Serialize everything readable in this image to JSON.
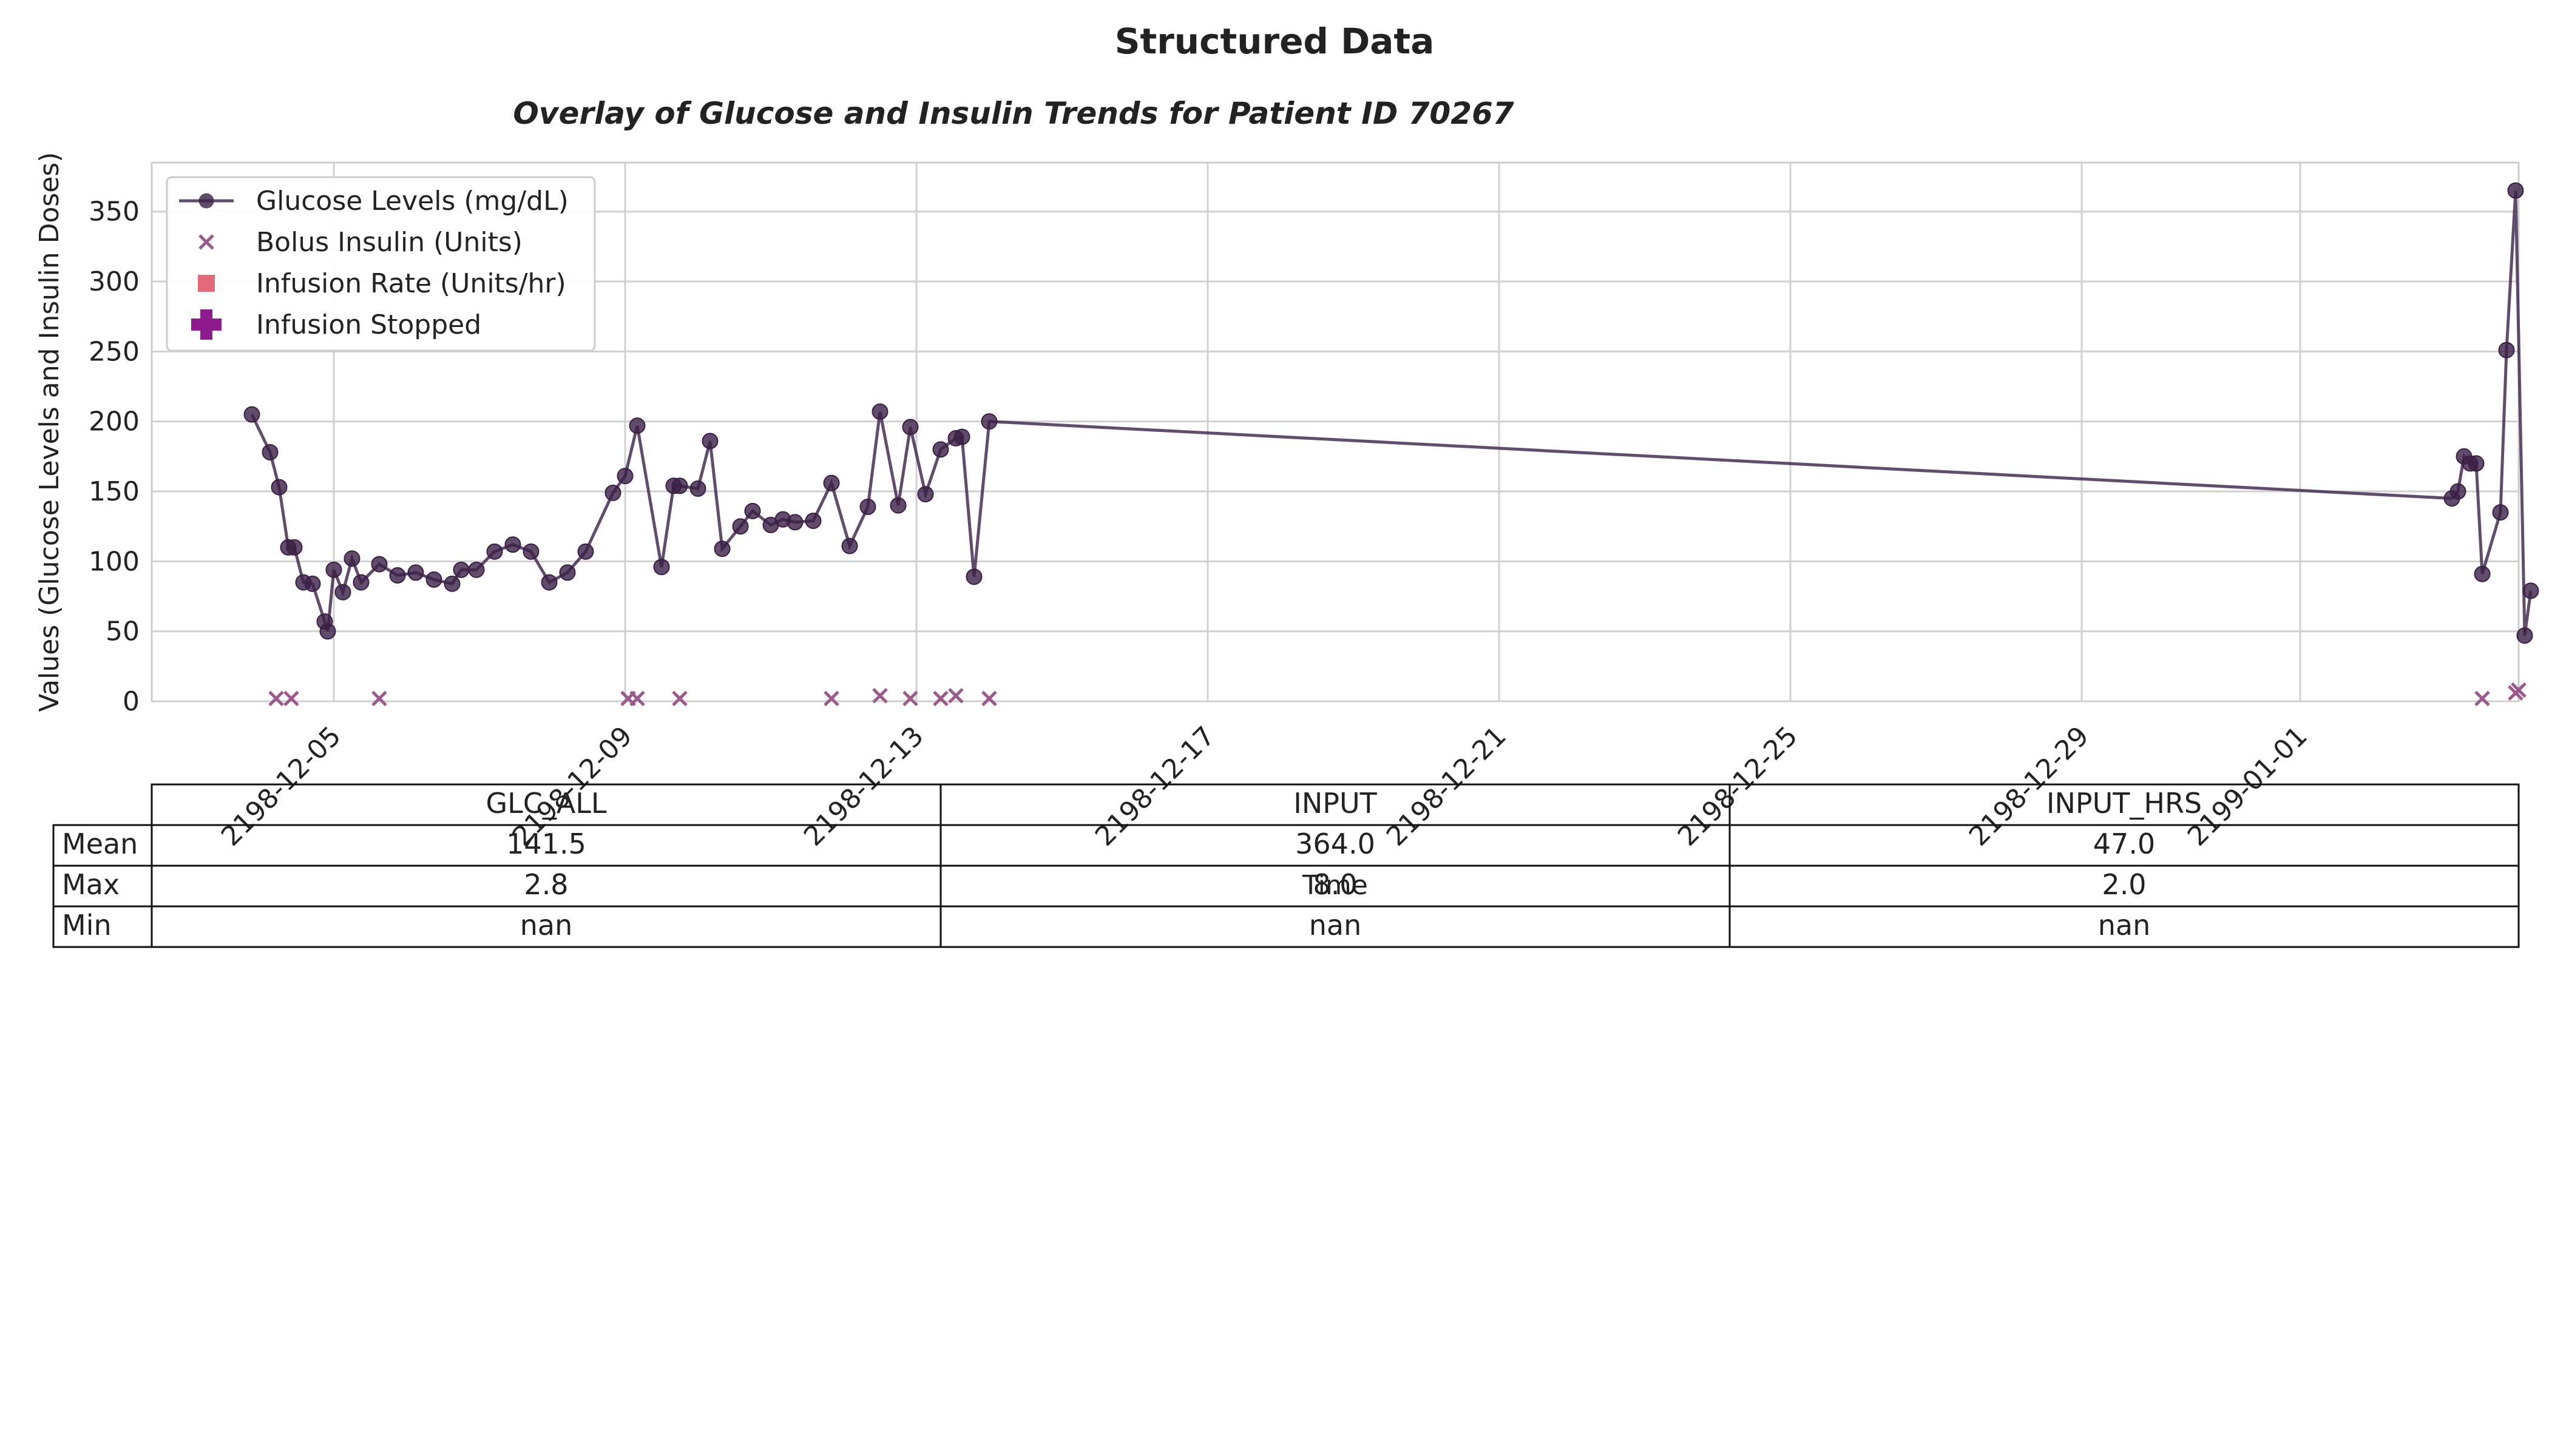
{
  "figure": {
    "suptitle": "Structured Data"
  },
  "chart_data": {
    "type": "line",
    "title": "Overlay of Glucose and Insulin Trends for Patient ID 70267",
    "xlabel": "Time",
    "ylabel": "Values (Glucose Levels and Insulin Doses)",
    "ylim": [
      0,
      385
    ],
    "xlim": [
      "2198-12-02T12:00",
      "2199-01-04T00:00"
    ],
    "grid": true,
    "legend_placement": "top-left",
    "y_ticks": [
      0,
      50,
      100,
      150,
      200,
      250,
      300,
      350
    ],
    "x_ticks": [
      "2198-12-05",
      "2198-12-09",
      "2198-12-13",
      "2198-12-17",
      "2198-12-21",
      "2198-12-25",
      "2198-12-29",
      "2199-01-01"
    ],
    "series": [
      {
        "name": "Glucose Levels (mg/dL)",
        "kind": "line-marker",
        "color": "#3b1f46",
        "points": [
          [
            "2198-12-03T21:00",
            205
          ],
          [
            "2198-12-04T03:00",
            178
          ],
          [
            "2198-12-04T06:00",
            153
          ],
          [
            "2198-12-04T09:00",
            110
          ],
          [
            "2198-12-04T11:00",
            110
          ],
          [
            "2198-12-04T14:00",
            85
          ],
          [
            "2198-12-04T17:00",
            84
          ],
          [
            "2198-12-04T21:00",
            57
          ],
          [
            "2198-12-04T22:00",
            50
          ],
          [
            "2198-12-05T00:00",
            94
          ],
          [
            "2198-12-05T03:00",
            78
          ],
          [
            "2198-12-05T06:00",
            102
          ],
          [
            "2198-12-05T09:00",
            85
          ],
          [
            "2198-12-05T15:00",
            98
          ],
          [
            "2198-12-05T21:00",
            90
          ],
          [
            "2198-12-06T03:00",
            92
          ],
          [
            "2198-12-06T09:00",
            87
          ],
          [
            "2198-12-06T15:00",
            84
          ],
          [
            "2198-12-06T18:00",
            94
          ],
          [
            "2198-12-06T23:00",
            94
          ],
          [
            "2198-12-07T05:00",
            107
          ],
          [
            "2198-12-07T11:00",
            112
          ],
          [
            "2198-12-07T17:00",
            107
          ],
          [
            "2198-12-07T23:00",
            85
          ],
          [
            "2198-12-08T05:00",
            92
          ],
          [
            "2198-12-08T11:00",
            107
          ],
          [
            "2198-12-08T20:00",
            149
          ],
          [
            "2198-12-09T00:00",
            161
          ],
          [
            "2198-12-09T04:00",
            197
          ],
          [
            "2198-12-09T12:00",
            96
          ],
          [
            "2198-12-09T16:00",
            154
          ],
          [
            "2198-12-09T18:00",
            154
          ],
          [
            "2198-12-10T00:00",
            152
          ],
          [
            "2198-12-10T04:00",
            186
          ],
          [
            "2198-12-10T08:00",
            109
          ],
          [
            "2198-12-10T14:00",
            125
          ],
          [
            "2198-12-10T18:00",
            136
          ],
          [
            "2198-12-11T00:00",
            126
          ],
          [
            "2198-12-11T04:00",
            130
          ],
          [
            "2198-12-11T08:00",
            128
          ],
          [
            "2198-12-11T14:00",
            129
          ],
          [
            "2198-12-11T20:00",
            156
          ],
          [
            "2198-12-12T02:00",
            111
          ],
          [
            "2198-12-12T08:00",
            139
          ],
          [
            "2198-12-12T12:00",
            207
          ],
          [
            "2198-12-12T18:00",
            140
          ],
          [
            "2198-12-12T22:00",
            196
          ],
          [
            "2198-12-13T03:00",
            148
          ],
          [
            "2198-12-13T08:00",
            180
          ],
          [
            "2198-12-13T13:00",
            188
          ],
          [
            "2198-12-13T15:00",
            189
          ],
          [
            "2198-12-13T19:00",
            89
          ],
          [
            "2198-12-14T00:00",
            200
          ],
          [
            "2199-01-03T02:00",
            145
          ],
          [
            "2199-01-03T04:00",
            150
          ],
          [
            "2199-01-03T06:00",
            175
          ],
          [
            "2199-01-03T08:00",
            170
          ],
          [
            "2199-01-03T10:00",
            170
          ],
          [
            "2199-01-03T12:00",
            91
          ],
          [
            "2199-01-03T18:00",
            135
          ],
          [
            "2199-01-03T20:00",
            251
          ],
          [
            "2199-01-03T23:00",
            365
          ],
          [
            "2199-01-04T02:00",
            47
          ],
          [
            "2199-01-04T04:00",
            79
          ]
        ]
      },
      {
        "name": "Bolus Insulin (Units)",
        "kind": "x-marker",
        "color": "#9b5a8c",
        "points": [
          [
            "2198-12-04T05:00",
            2
          ],
          [
            "2198-12-04T10:00",
            2
          ],
          [
            "2198-12-05T15:00",
            2
          ],
          [
            "2198-12-09T01:00",
            2
          ],
          [
            "2198-12-09T04:00",
            2
          ],
          [
            "2198-12-09T18:00",
            2
          ],
          [
            "2198-12-11T20:00",
            2
          ],
          [
            "2198-12-12T12:00",
            4
          ],
          [
            "2198-12-12T22:00",
            2
          ],
          [
            "2198-12-13T08:00",
            2
          ],
          [
            "2198-12-13T13:00",
            4
          ],
          [
            "2198-12-14T00:00",
            2
          ],
          [
            "2199-01-03T12:00",
            2
          ],
          [
            "2199-01-03T23:00",
            6
          ],
          [
            "2199-01-04T00:00",
            8
          ]
        ]
      },
      {
        "name": "Infusion Rate (Units/hr)",
        "kind": "square-marker",
        "color": "#e05a6a",
        "points": []
      },
      {
        "name": "Infusion Stopped",
        "kind": "plus-marker",
        "color": "#8e1c8e",
        "points": []
      }
    ],
    "table": {
      "columns": [
        "GLC_ALL",
        "INPUT",
        "INPUT_HRS"
      ],
      "rows": [
        {
          "label": "Mean",
          "values": [
            "141.5",
            "364.0",
            "47.0"
          ]
        },
        {
          "label": "Max",
          "values": [
            "2.8",
            "8.0",
            "2.0"
          ]
        },
        {
          "label": "Min",
          "values": [
            "nan",
            "nan",
            "nan"
          ]
        }
      ]
    }
  }
}
